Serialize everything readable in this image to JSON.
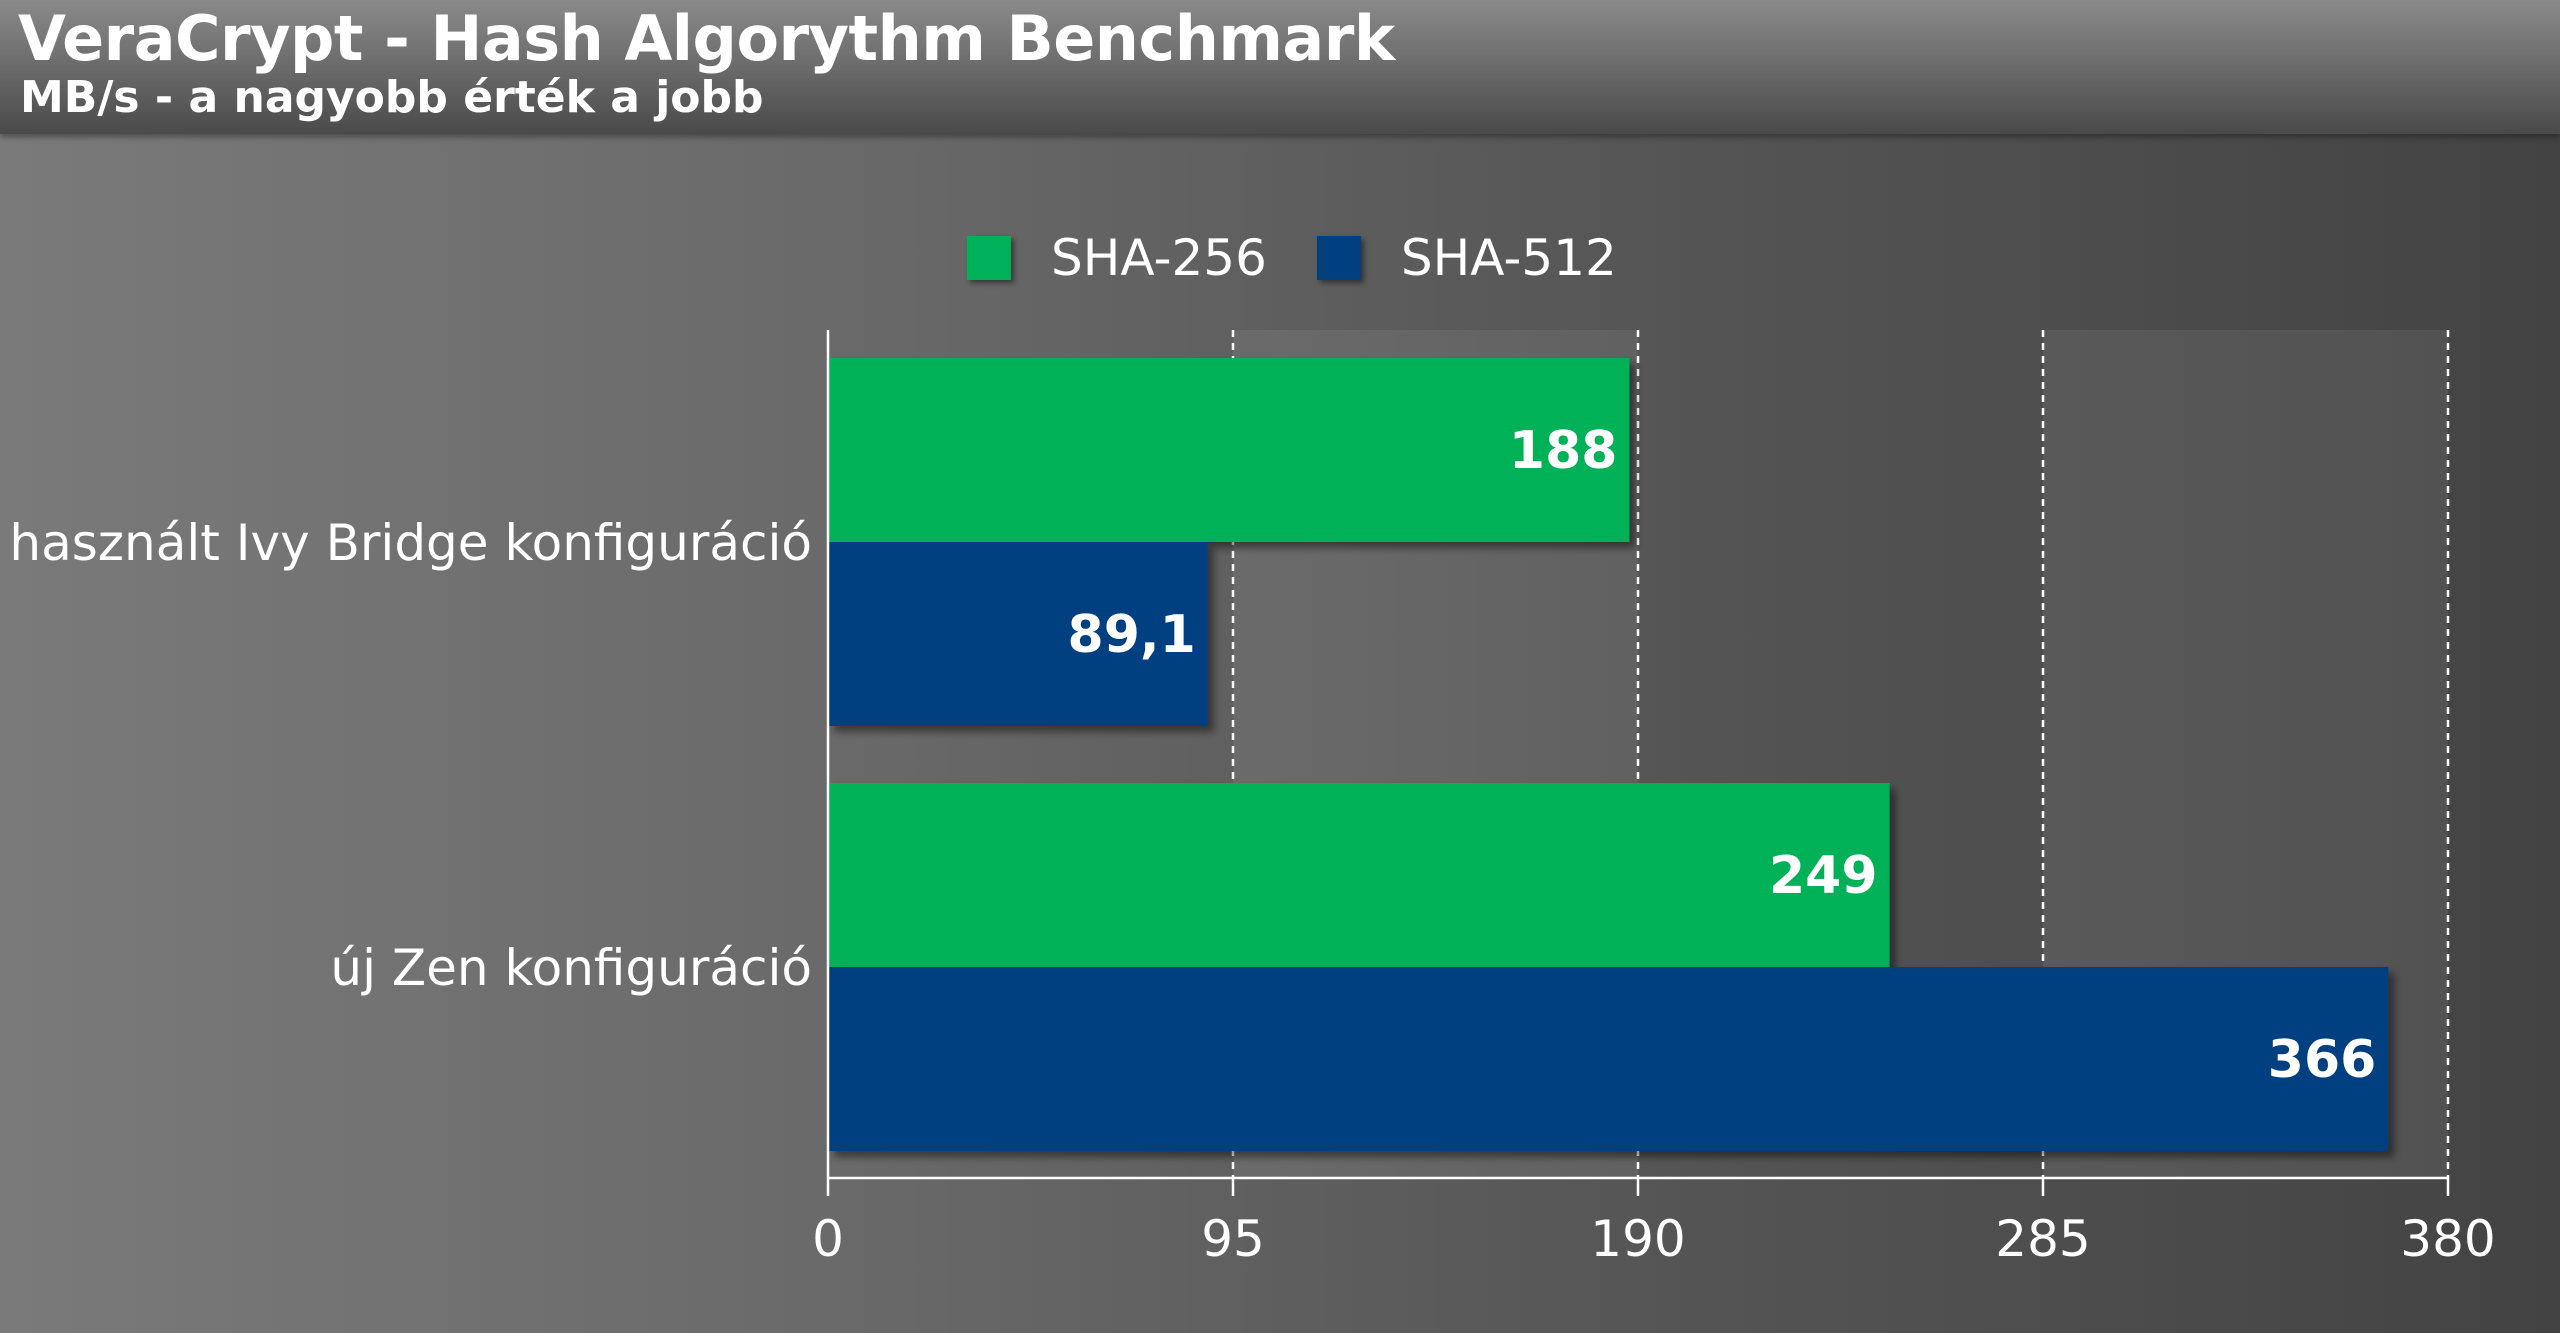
{
  "header": {
    "title": "VeraCrypt - Hash Algorythm Benchmark",
    "subtitle": "MB/s - a nagyobb érték a jobb"
  },
  "legend": [
    {
      "label": "SHA-256",
      "color": "#00b159"
    },
    {
      "label": "SHA-512",
      "color": "#003f80"
    }
  ],
  "chart_data": {
    "type": "bar",
    "orientation": "horizontal",
    "title": "VeraCrypt - Hash Algorythm Benchmark",
    "subtitle": "MB/s - a nagyobb érték a jobb",
    "categories": [
      "használt Ivy Bridge konfiguráció",
      "új Zen konfiguráció"
    ],
    "series": [
      {
        "name": "SHA-256",
        "color": "#00b159",
        "values": [
          188,
          249
        ],
        "labels": [
          "188",
          "249"
        ]
      },
      {
        "name": "SHA-512",
        "color": "#003f80",
        "values": [
          89.1,
          366
        ],
        "labels": [
          "89,1",
          "366"
        ]
      }
    ],
    "xlim": [
      0,
      380
    ],
    "xticks": [
      0,
      95,
      190,
      285,
      380
    ],
    "grid": true,
    "legend_position": "top"
  }
}
